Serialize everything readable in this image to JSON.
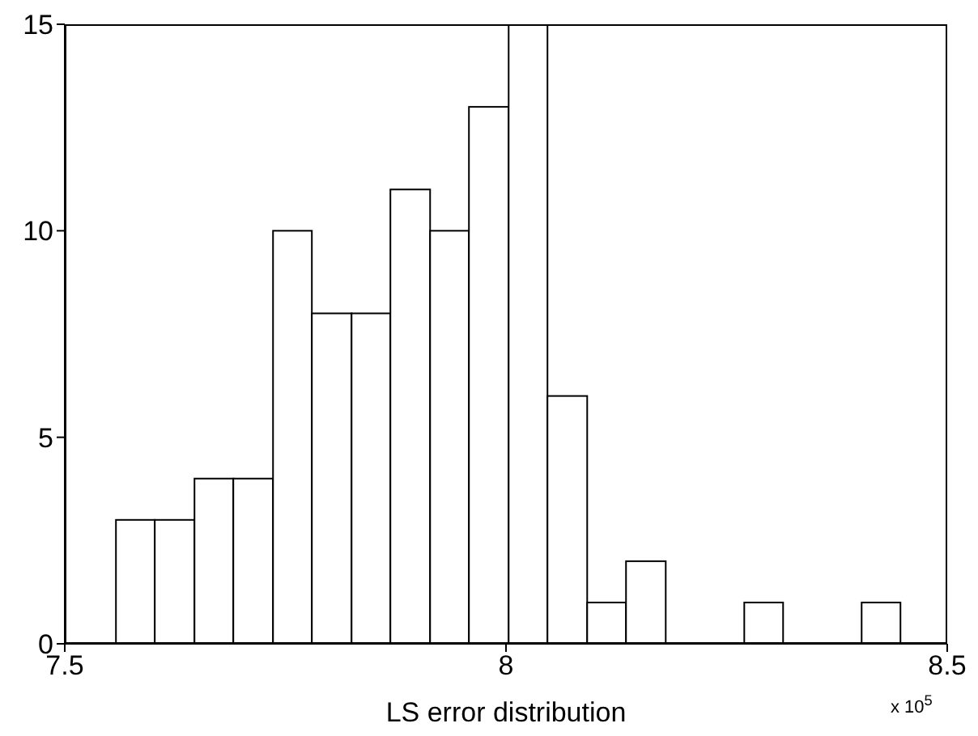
{
  "chart_data": {
    "type": "histogram",
    "xlabel": "LS error distribution",
    "bins": [
      7.558,
      7.602,
      7.647,
      7.691,
      7.736,
      7.78,
      7.825,
      7.869,
      7.914,
      7.958,
      8.003,
      8.047,
      8.092,
      8.136,
      8.181,
      8.27,
      8.314,
      8.403,
      8.447
    ],
    "values": [
      3,
      3,
      4,
      4,
      10,
      8,
      8,
      11,
      10,
      13,
      15,
      6,
      1,
      2,
      0,
      1,
      0,
      1
    ],
    "color": "#ffffff",
    "xlim": [
      7.5,
      8.5
    ],
    "xticks": [
      7.5,
      8,
      8.5
    ],
    "ylim": [
      0,
      15
    ],
    "yticks": [
      0,
      5,
      10,
      15
    ],
    "grid": false,
    "annotations": [
      "x 10$^{5}$"
    ]
  }
}
